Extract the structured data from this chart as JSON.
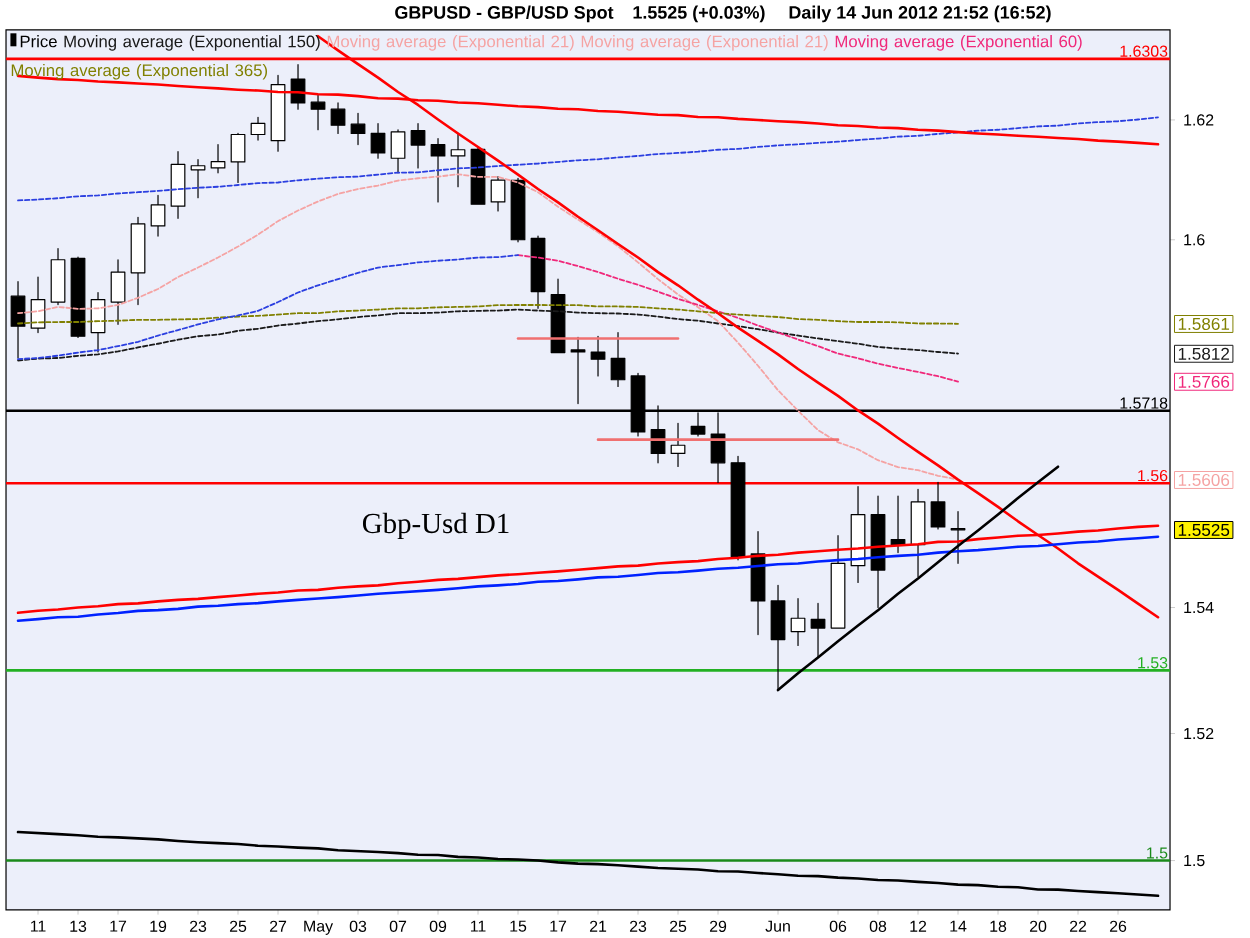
{
  "chart_data": {
    "type": "candlestick",
    "title": "GBPUSD - GBP/USD Spot",
    "subtitle": "1.5525 (+0.03%)",
    "annotations": [
      "Daily 14 Jun 2012 21:52 (16:52)",
      "Gbp-Usd D1",
      "1.5861",
      "1.5812",
      "1.5766",
      "1.5606",
      "1.5525"
    ],
    "categories": [
      null,
      "11",
      null,
      "13",
      null,
      "17",
      null,
      "19",
      null,
      "23",
      null,
      "25",
      null,
      "27",
      null,
      "May",
      null,
      "03",
      null,
      "07",
      null,
      "09",
      null,
      "11",
      null,
      "15",
      null,
      "17",
      null,
      "21",
      null,
      "23",
      null,
      "25",
      null,
      "29",
      null,
      null,
      "Jun",
      null,
      null,
      "06",
      null,
      "08",
      null,
      "12",
      null,
      "14",
      null,
      "18",
      null,
      "20",
      null,
      "22",
      null,
      "26",
      null,
      null
    ],
    "ylim": [
      1.4924,
      1.6353
    ],
    "yticks": [
      1.5,
      1.52,
      1.54,
      1.6,
      1.62
    ],
    "log": "y",
    "legend": "top left",
    "series": [
      {
        "name": "Price",
        "color": "#000000",
        "ohlc": [
          [
            1.5906,
            1.593,
            1.5805,
            1.5857
          ],
          [
            1.5854,
            1.5937,
            1.5846,
            1.5901
          ],
          [
            1.5897,
            1.5986,
            1.5893,
            1.5967
          ],
          [
            1.5969,
            1.5972,
            1.5838,
            1.584
          ],
          [
            1.5846,
            1.5912,
            1.5815,
            1.5901
          ],
          [
            1.5897,
            1.5967,
            1.586,
            1.5947
          ],
          [
            1.5945,
            1.6037,
            1.5893,
            1.6026
          ],
          [
            1.6022,
            1.6074,
            1.6006,
            1.6058
          ],
          [
            1.6056,
            1.6147,
            1.6036,
            1.6126
          ],
          [
            1.6117,
            1.6134,
            1.607,
            1.6124
          ],
          [
            1.612,
            1.6159,
            1.6112,
            1.6131
          ],
          [
            1.613,
            1.6178,
            1.6095,
            1.6176
          ],
          [
            1.6176,
            1.6204,
            1.6167,
            1.6194
          ],
          [
            1.6166,
            1.6276,
            1.6148,
            1.626
          ],
          [
            1.627,
            1.6294,
            1.6218,
            1.6229
          ],
          [
            1.6231,
            1.6242,
            1.6184,
            1.6218
          ],
          [
            1.6218,
            1.6229,
            1.6178,
            1.6192
          ],
          [
            1.6193,
            1.6212,
            1.6159,
            1.6178
          ],
          [
            1.6178,
            1.6195,
            1.6136,
            1.6145
          ],
          [
            1.6136,
            1.6184,
            1.6112,
            1.6181
          ],
          [
            1.6182,
            1.6195,
            1.612,
            1.6158
          ],
          [
            1.6159,
            1.6169,
            1.6063,
            1.614
          ],
          [
            1.614,
            1.6178,
            1.6089,
            1.615
          ],
          [
            1.6151,
            1.6156,
            1.6059,
            1.6059
          ],
          [
            1.6063,
            1.6106,
            1.6048,
            1.61
          ],
          [
            1.6099,
            1.6103,
            1.5997,
            1.6
          ],
          [
            1.6002,
            1.6006,
            1.5887,
            1.5914
          ],
          [
            1.5909,
            1.5934,
            1.5813,
            1.5813
          ],
          [
            1.5818,
            1.5838,
            1.573,
            1.5815
          ],
          [
            1.5815,
            1.584,
            1.5775,
            1.5802
          ],
          [
            1.5804,
            1.5846,
            1.5758,
            1.5769
          ],
          [
            1.5775,
            1.578,
            1.5677,
            1.5684
          ],
          [
            1.5688,
            1.5726,
            1.5633,
            1.5649
          ],
          [
            1.5649,
            1.5698,
            1.5628,
            1.5662
          ],
          [
            1.5693,
            1.5715,
            1.5677,
            1.568
          ],
          [
            1.568,
            1.5715,
            1.5601,
            1.5633
          ],
          [
            1.5633,
            1.5644,
            1.5477,
            1.5482
          ],
          [
            1.5486,
            1.5522,
            1.5357,
            1.5411
          ],
          [
            1.5411,
            1.5436,
            1.5269,
            1.5349
          ],
          [
            1.5362,
            1.5415,
            1.534,
            1.5383
          ],
          [
            1.5381,
            1.5407,
            1.5322,
            1.5367
          ],
          [
            1.5367,
            1.5515,
            1.5367,
            1.5472
          ],
          [
            1.5468,
            1.5595,
            1.544,
            1.555
          ],
          [
            1.555,
            1.5579,
            1.54,
            1.546
          ],
          [
            1.5509,
            1.5579,
            1.5488,
            1.5501
          ],
          [
            1.5501,
            1.559,
            1.545,
            1.557
          ],
          [
            1.557,
            1.5601,
            1.5526,
            1.5529
          ],
          [
            1.5527,
            1.5554,
            1.5472,
            1.5525
          ],
          null,
          null,
          null,
          null,
          null,
          null,
          null,
          null,
          null,
          null
        ]
      },
      {
        "type": "line",
        "name": "Moving average (Exponential 150)",
        "color": "#1a1a1a",
        "line_style": "dashed",
        "values": [
          1.58,
          1.5803,
          1.5805,
          1.5808,
          1.581,
          1.5816,
          1.5822,
          1.5828,
          1.5834,
          1.584,
          1.5844,
          1.5849,
          1.5853,
          1.5858,
          1.5862,
          1.5865,
          1.5868,
          1.5872,
          1.5875,
          1.5878,
          1.5879,
          1.588,
          1.5881,
          1.5882,
          1.5883,
          1.5884,
          1.5883,
          1.5881,
          1.588,
          1.5879,
          1.5877,
          1.5876,
          1.5873,
          1.5869,
          1.5866,
          1.5862,
          1.5857,
          1.5852,
          1.5846,
          1.5841,
          1.5837,
          1.5832,
          1.5828,
          1.5823,
          1.582,
          1.5817,
          1.5815,
          1.5812,
          null,
          null,
          null,
          null,
          null,
          null,
          null,
          null,
          null,
          null
        ]
      },
      {
        "type": "line",
        "name": "Moving average (Exponential 21)",
        "color": "#f5a3a3",
        "line_style": "dashed",
        "values": [
          1.5879,
          1.5881,
          1.5889,
          1.5885,
          1.5886,
          1.5892,
          1.5904,
          1.5918,
          1.5937,
          1.5954,
          1.597,
          1.5989,
          1.6008,
          1.6031,
          1.6049,
          1.6064,
          1.6076,
          1.6085,
          1.609,
          1.6098,
          1.6103,
          1.6106,
          1.611,
          1.6105,
          1.6105,
          1.6095,
          1.6079,
          1.6055,
          1.6033,
          1.6012,
          1.599,
          1.5962,
          1.5934,
          1.5909,
          1.5888,
          1.5865,
          1.583,
          1.5792,
          1.5752,
          1.5718,
          1.5686,
          1.5667,
          1.5656,
          1.5638,
          1.5626,
          1.5621,
          1.5613,
          1.5606,
          null,
          null,
          null,
          null,
          null,
          null,
          null,
          null,
          null,
          null
        ]
      },
      {
        "type": "line",
        "name": "Moving average (Exponential 21)",
        "color": "#f5a3a3",
        "line_style": "dashed",
        "values": [
          null,
          null,
          null,
          null,
          null,
          null,
          null,
          null,
          null,
          null,
          null,
          null,
          null,
          null,
          null,
          null,
          null,
          null,
          null,
          null,
          null,
          null,
          null,
          null,
          null,
          null,
          null,
          null,
          null,
          null,
          null,
          null,
          null,
          null,
          null,
          null,
          null,
          null,
          null,
          null,
          null,
          null,
          null,
          null,
          null,
          null,
          null,
          null,
          null,
          null,
          null,
          null,
          null,
          null,
          null,
          null,
          null,
          null
        ]
      },
      {
        "type": "line",
        "name": "Moving average (Exponential 60)",
        "color": "#f0287a",
        "line_style": "dashed",
        "values": [
          null,
          null,
          null,
          null,
          null,
          null,
          null,
          null,
          null,
          null,
          null,
          null,
          null,
          null,
          null,
          null,
          null,
          null,
          null,
          null,
          null,
          null,
          null,
          null,
          null,
          1.5974,
          1.597,
          1.5965,
          1.5956,
          1.5947,
          1.5936,
          1.5925,
          1.5914,
          1.5902,
          1.5892,
          1.5881,
          1.587,
          1.5858,
          1.5847,
          1.5835,
          1.5824,
          1.5812,
          1.5804,
          1.5795,
          1.5788,
          1.5781,
          1.5774,
          1.5766,
          null,
          null,
          null,
          null,
          null,
          null,
          null,
          null,
          null,
          null
        ]
      },
      {
        "type": "line",
        "name": "Moving average (Exponential 365)",
        "color": "#808000",
        "line_style": "dashed",
        "values": [
          1.5862,
          1.5863,
          1.5864,
          1.5864,
          1.5865,
          1.5866,
          1.5867,
          1.5867,
          1.5868,
          1.5869,
          1.5871,
          1.5873,
          1.5874,
          1.5876,
          1.5878,
          1.5879,
          1.5881,
          1.5883,
          1.5884,
          1.5886,
          1.5887,
          1.5888,
          1.5889,
          1.589,
          1.5891,
          1.5892,
          1.5892,
          1.5891,
          1.5891,
          1.589,
          1.589,
          1.5889,
          1.5886,
          1.5884,
          1.5881,
          1.5879,
          1.5876,
          1.5874,
          1.5872,
          1.5869,
          1.5867,
          1.5865,
          1.5864,
          1.5864,
          1.5863,
          1.5862,
          1.5862,
          1.5861,
          null,
          null,
          null,
          null,
          null,
          null,
          null,
          null,
          null,
          null
        ]
      },
      {
        "type": "line",
        "color": "#2b3fe0",
        "line_style": "dashed",
        "values": [
          1.5802,
          1.5805,
          1.5809,
          1.5813,
          1.5817,
          1.5824,
          1.5831,
          1.5841,
          1.5851,
          1.586,
          1.5868,
          1.5875,
          1.5882,
          1.5897,
          1.5912,
          1.5924,
          1.5935,
          1.5945,
          1.5954,
          1.5958,
          1.5962,
          1.5965,
          1.5968,
          1.597,
          1.5972,
          1.5974,
          null,
          null,
          null,
          null,
          null,
          null,
          null,
          null,
          null,
          null,
          null,
          null,
          null,
          null,
          null,
          null,
          null,
          null,
          null,
          null,
          null,
          null,
          null,
          null,
          null,
          null,
          null,
          null,
          null,
          null,
          null,
          null
        ]
      },
      {
        "type": "line",
        "color": "#2b3fe0",
        "line_style": "dashed",
        "values": [
          1.6065,
          1.6067,
          1.6069,
          1.6072,
          1.6074,
          1.6077,
          1.6079,
          1.6082,
          1.6084,
          1.6086,
          1.6089,
          1.6091,
          1.6094,
          1.6096,
          1.6099,
          1.6101,
          1.6104,
          1.6106,
          1.6108,
          1.6111,
          1.6113,
          1.6116,
          1.6118,
          1.6121,
          1.6123,
          1.6125,
          1.6128,
          1.613,
          1.6133,
          1.6135,
          1.6138,
          1.614,
          1.6143,
          1.6145,
          1.6147,
          1.615,
          1.6152,
          1.6155,
          1.6157,
          1.616,
          1.6162,
          1.6164,
          1.6167,
          1.6169,
          1.6172,
          1.6174,
          1.6177,
          1.6179,
          1.6182,
          1.6184,
          1.6186,
          1.6189,
          1.6191,
          1.6194,
          1.6196,
          1.6199,
          1.6201,
          1.6204
        ]
      },
      {
        "type": "line",
        "color": "#ff0000",
        "values": [
          1.6274,
          1.6272,
          1.627,
          1.6268,
          1.6266,
          1.6264,
          1.6262,
          1.626,
          1.6258,
          1.6256,
          1.6254,
          1.6252,
          1.625,
          1.6248,
          1.6246,
          1.6244,
          1.6242,
          1.624,
          1.6238,
          1.6236,
          1.6234,
          1.6232,
          1.623,
          1.6228,
          1.6226,
          1.6224,
          1.6222,
          1.622,
          1.6218,
          1.6216,
          1.6214,
          1.6212,
          1.621,
          1.6208,
          1.6206,
          1.6204,
          1.6202,
          1.62,
          1.6198,
          1.6196,
          1.6194,
          1.6192,
          1.619,
          1.6188,
          1.6186,
          1.6184,
          1.6182,
          1.618,
          1.6178,
          1.6176,
          1.6174,
          1.6172,
          1.617,
          1.6168,
          1.6166,
          1.6164,
          1.6162,
          1.616
        ]
      },
      {
        "type": "line",
        "color": "#ff0000",
        "values": [
          null,
          null,
          null,
          null,
          null,
          null,
          null,
          null,
          null,
          null,
          null,
          null,
          null,
          null,
          null,
          1.6342,
          1.6318,
          1.6295,
          1.6272,
          1.6248,
          1.6225,
          1.6201,
          1.6178,
          1.6155,
          1.6132,
          1.6108,
          1.6085,
          1.6062,
          1.6039,
          1.6016,
          1.5993,
          1.597,
          1.5947,
          1.5924,
          1.5901,
          1.5878,
          1.5855,
          1.5833,
          1.581,
          1.5787,
          1.5764,
          1.5742,
          1.5719,
          1.5697,
          1.5674,
          1.5651,
          1.5629,
          1.5606,
          1.5584,
          1.5562,
          1.5539,
          1.5517,
          1.5495,
          1.5472,
          1.545,
          1.5428,
          1.5406,
          1.5384
        ]
      },
      {
        "type": "line",
        "color": "#ff0000",
        "values": [
          1.5392,
          1.5395,
          1.5397,
          1.54,
          1.5402,
          1.5405,
          1.5407,
          1.541,
          1.5412,
          1.5414,
          1.5417,
          1.5419,
          1.5422,
          1.5424,
          1.5427,
          1.5429,
          1.5432,
          1.5434,
          1.5436,
          1.5439,
          1.5441,
          1.5444,
          1.5446,
          1.5449,
          1.5451,
          1.5454,
          1.5456,
          1.5458,
          1.5461,
          1.5463,
          1.5466,
          1.5468,
          1.5471,
          1.5473,
          1.5475,
          1.5478,
          1.548,
          1.5483,
          1.5485,
          1.5488,
          1.549,
          1.5493,
          1.5495,
          1.5497,
          1.55,
          1.5502,
          1.5505,
          1.5507,
          1.551,
          1.5512,
          1.5515,
          1.5517,
          1.5519,
          1.5522,
          1.5524,
          1.5527,
          1.5529,
          1.5532
        ]
      },
      {
        "type": "line",
        "color": "#0022ff",
        "values": [
          1.5379,
          1.5382,
          1.5384,
          1.5386,
          1.5389,
          1.5391,
          1.5394,
          1.5396,
          1.5398,
          1.5401,
          1.5403,
          1.5405,
          1.5408,
          1.541,
          1.5412,
          1.5415,
          1.5417,
          1.5419,
          1.5422,
          1.5424,
          1.5426,
          1.5429,
          1.5431,
          1.5434,
          1.5436,
          1.5438,
          1.5441,
          1.5443,
          1.5445,
          1.5448,
          1.545,
          1.5452,
          1.5455,
          1.5457,
          1.5459,
          1.5462,
          1.5464,
          1.5467,
          1.5469,
          1.5471,
          1.5474,
          1.5476,
          1.5478,
          1.5481,
          1.5483,
          1.5485,
          1.5488,
          1.549,
          1.5492,
          1.5495,
          1.5497,
          1.5499,
          1.5502,
          1.5504,
          1.5507,
          1.5509,
          1.5511,
          1.5514
        ]
      },
      {
        "type": "line",
        "color": "#000000",
        "values": [
          1.5045,
          1.5043,
          1.5042,
          1.504,
          1.5038,
          1.5036,
          1.5035,
          1.5033,
          1.5031,
          1.5029,
          1.5028,
          1.5026,
          1.5024,
          1.5022,
          1.5021,
          1.5019,
          1.5017,
          1.5015,
          1.5014,
          1.5012,
          1.501,
          1.5009,
          1.5007,
          1.5005,
          1.5003,
          1.5002,
          1.5,
          1.4998,
          1.4996,
          1.4995,
          1.4993,
          1.4991,
          1.4989,
          1.4988,
          1.4986,
          1.4984,
          1.4983,
          1.4981,
          1.4979,
          1.4977,
          1.4976,
          1.4974,
          1.4972,
          1.497,
          1.4969,
          1.4967,
          1.4965,
          1.4963,
          1.4962,
          1.496,
          1.4958,
          1.4956,
          1.4955,
          1.4953,
          1.4951,
          1.495,
          1.4948,
          1.4946
        ]
      },
      {
        "type": "line",
        "color": "#000000",
        "values": [
          null,
          null,
          null,
          null,
          null,
          null,
          null,
          null,
          null,
          null,
          null,
          null,
          null,
          null,
          null,
          null,
          null,
          null,
          null,
          null,
          null,
          null,
          null,
          null,
          null,
          null,
          null,
          null,
          null,
          null,
          null,
          null,
          null,
          null,
          null,
          null,
          null,
          null,
          1.5269,
          1.5295,
          1.532,
          1.5346,
          1.5371,
          1.5396,
          1.5422,
          1.5447,
          1.5473,
          1.5499,
          1.5524,
          1.555,
          1.5576,
          1.5602,
          1.5627,
          null,
          null,
          null,
          null,
          null
        ]
      },
      {
        "type": "line",
        "color": "#f07070",
        "values": [
          null,
          null,
          null,
          null,
          null,
          null,
          null,
          null,
          null,
          null,
          null,
          null,
          null,
          null,
          null,
          null,
          null,
          null,
          null,
          null,
          null,
          null,
          null,
          null,
          null,
          1.5837,
          1.5837,
          1.5837,
          1.5837,
          1.5837,
          1.5837,
          1.5837,
          1.5837,
          1.5837,
          null,
          null,
          null,
          null,
          null,
          null,
          null,
          null,
          null,
          null,
          null,
          null,
          null,
          null,
          null,
          null,
          null,
          null,
          null,
          null,
          null,
          null,
          null,
          null
        ]
      },
      {
        "type": "line",
        "color": "#f07070",
        "values": [
          null,
          null,
          null,
          null,
          null,
          null,
          null,
          null,
          null,
          null,
          null,
          null,
          null,
          null,
          null,
          null,
          null,
          null,
          null,
          null,
          null,
          null,
          null,
          null,
          null,
          null,
          null,
          null,
          null,
          1.5671,
          1.5671,
          1.5671,
          1.5671,
          1.5671,
          1.5671,
          1.5671,
          1.5671,
          1.5671,
          1.5671,
          1.5671,
          1.5671,
          1.5671,
          null,
          null,
          null,
          null,
          null,
          null,
          null,
          null,
          null,
          null,
          null,
          null,
          null,
          null,
          null,
          null
        ]
      }
    ],
    "ref_lines": [
      {
        "axis": "y",
        "value": 1.6303,
        "label": "1.6303",
        "color": "#ff0000"
      },
      {
        "axis": "y",
        "value": 1.5718,
        "label": "1.5718",
        "color": "#000000"
      },
      {
        "axis": "y",
        "value": 1.56,
        "label": "1.56",
        "color": "#ff0000"
      },
      {
        "axis": "y",
        "value": 1.53,
        "label": "1.53",
        "color": "#22b022"
      },
      {
        "axis": "y",
        "value": 1.5,
        "label": "1.5",
        "color": "#1a8a1a"
      }
    ]
  }
}
